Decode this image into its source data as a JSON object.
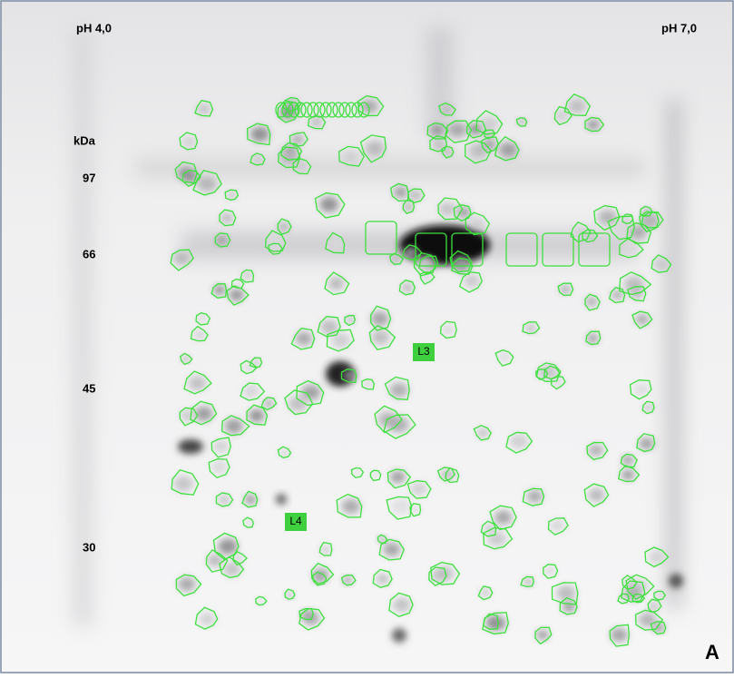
{
  "header": {
    "left_ph": "pH 4,0",
    "right_ph": "pH 7,0"
  },
  "mass_axis": {
    "unit": "kDa",
    "markers": [
      "97",
      "66",
      "45",
      "30"
    ]
  },
  "spot_labels": [
    "L3",
    "L4"
  ],
  "panel_label": "A"
}
